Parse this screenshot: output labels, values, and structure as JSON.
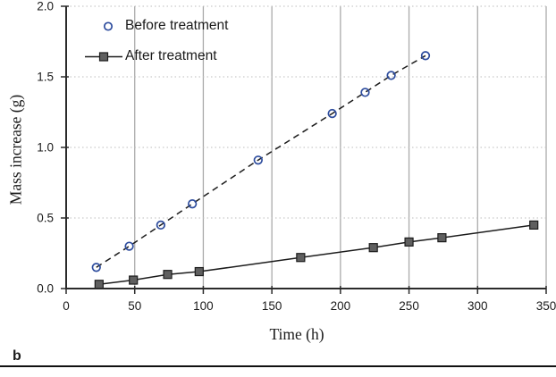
{
  "figure_label": "b",
  "colors": {
    "accent_blue": "#2e4d9e",
    "marker_gray": "#5f5f5f",
    "line_black": "#1c1c1c",
    "grid_vertical": "#ababab",
    "grid_horizontal": "#bdbdbd",
    "axis": "#2b2b2b",
    "text": "#1a1a1a"
  },
  "chart_data": {
    "type": "line",
    "title": "",
    "xlabel": "Time (h)",
    "ylabel": "Mass increase (g)",
    "xlim": [
      0,
      350
    ],
    "ylim": [
      0,
      2.0
    ],
    "x_ticks": [
      0,
      50,
      100,
      150,
      200,
      250,
      300,
      350
    ],
    "x_tick_labels": [
      "0",
      "50",
      "100",
      "150",
      "200",
      "250",
      "300",
      "350"
    ],
    "y_ticks": [
      0.0,
      0.5,
      1.0,
      1.5,
      2.0
    ],
    "y_tick_labels": [
      "0.0",
      "0.5",
      "1.0",
      "1.5",
      "2.0"
    ],
    "grid": "vertical solid gray, horizontal dotted light gray",
    "legend_position": "top-left-inside",
    "series": [
      {
        "name": "Before treatment",
        "marker": "circle-open",
        "color": "#2e4d9e",
        "line": "dashed",
        "line_color": "#1c1c1c",
        "x": [
          22,
          46,
          69,
          92,
          140,
          194,
          218,
          237,
          262
        ],
        "y": [
          0.15,
          0.3,
          0.45,
          0.6,
          0.91,
          1.24,
          1.39,
          1.51,
          1.65
        ]
      },
      {
        "name": "After treatment",
        "marker": "square-filled",
        "color": "#5f5f5f",
        "line": "solid",
        "line_color": "#1c1c1c",
        "x": [
          24,
          49,
          74,
          97,
          171,
          224,
          250,
          274,
          341
        ],
        "y": [
          0.03,
          0.06,
          0.1,
          0.12,
          0.22,
          0.29,
          0.33,
          0.36,
          0.45
        ]
      }
    ]
  }
}
